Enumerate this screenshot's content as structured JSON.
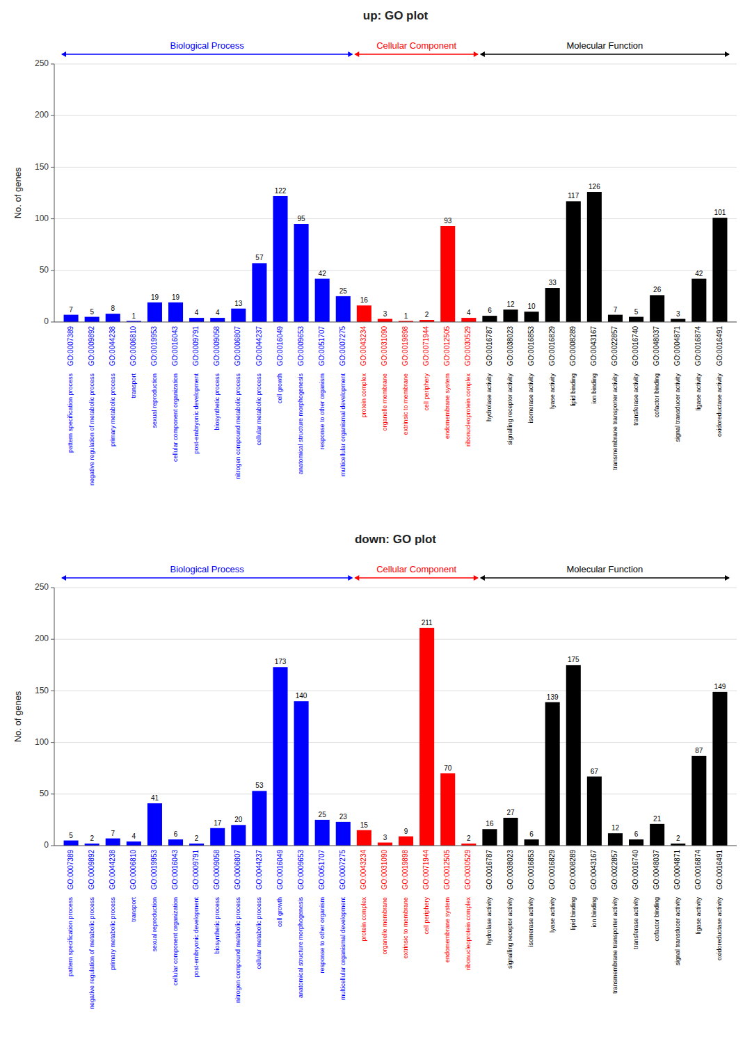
{
  "chart_data": [
    {
      "type": "bar",
      "title": "up: GO plot",
      "ylabel": "No. of genes",
      "categories": [
        "GO:0007389",
        "GO:0009892",
        "GO:0044238",
        "GO:0006810",
        "GO:0019953",
        "GO:0016043",
        "GO:0009791",
        "GO:0009058",
        "GO:0006807",
        "GO:0044237",
        "GO:0016049",
        "GO:0009653",
        "GO:0051707",
        "GO:0007275",
        "GO:0043234",
        "GO:0031090",
        "GO:0019898",
        "GO:0071944",
        "GO:0012505",
        "GO:0030529",
        "GO:0016787",
        "GO:0038023",
        "GO:0016853",
        "GO:0016829",
        "GO:0008289",
        "GO:0043167",
        "GO:0022857",
        "GO:0016740",
        "GO:0048037",
        "GO:0004871",
        "GO:0016874",
        "GO:0016491"
      ],
      "category_labels": [
        "pattern specification process",
        "negative regulation of metabolic process",
        "primary metabolic process",
        "transport",
        "sexual reproduction",
        "cellular component organization",
        "post-embryonic development",
        "biosynthetic process",
        "nitrogen compound metabolic process",
        "cellular metabolic process",
        "cell growth",
        "anatomical structure morphogenesis",
        "response to other organism",
        "multicellular organismal development",
        "protein complex",
        "organelle membrane",
        "extrinsic to membrane",
        "cell periphery",
        "endomembrane system",
        "ribonucleoprotein complex",
        "hydrolase activity",
        "signalling receptor activity",
        "isomerase activity",
        "lyase activity",
        "lipid binding",
        "ion binding",
        "transmembrane transporter activity",
        "transferase activity",
        "cofactor binding",
        "signal transducer activity",
        "ligase activity",
        "oxidoreductase activity"
      ],
      "values": [
        7,
        5,
        8,
        1,
        19,
        19,
        4,
        4,
        13,
        57,
        122,
        95,
        42,
        25,
        16,
        3,
        1,
        2,
        93,
        4,
        6,
        12,
        10,
        33,
        117,
        126,
        7,
        5,
        26,
        3,
        42,
        101
      ],
      "colors": [
        "blue",
        "blue",
        "blue",
        "blue",
        "blue",
        "blue",
        "blue",
        "blue",
        "blue",
        "blue",
        "blue",
        "blue",
        "blue",
        "blue",
        "red",
        "red",
        "red",
        "red",
        "red",
        "red",
        "black",
        "black",
        "black",
        "black",
        "black",
        "black",
        "black",
        "black",
        "black",
        "black",
        "black",
        "black"
      ],
      "groups": [
        {
          "name": "Biological Process",
          "color": "blue",
          "size": 14
        },
        {
          "name": "Cellular Component",
          "color": "red",
          "size": 6
        },
        {
          "name": "Molecular Function",
          "color": "black",
          "size": 12
        }
      ],
      "ylim": [
        0,
        250
      ],
      "yticks": [
        0,
        50,
        100,
        150,
        200,
        250
      ],
      "grid": true,
      "data_labels": true
    },
    {
      "type": "bar",
      "title": "down: GO plot",
      "ylabel": "No. of genes",
      "categories": [
        "GO:0007389",
        "GO:0009892",
        "GO:0044238",
        "GO:0006810",
        "GO:0019953",
        "GO:0016043",
        "GO:0009791",
        "GO:0009058",
        "GO:0006807",
        "GO:0044237",
        "GO:0016049",
        "GO:0009653",
        "GO:0051707",
        "GO:0007275",
        "GO:0043234",
        "GO:0031090",
        "GO:0019898",
        "GO:0071944",
        "GO:0012505",
        "GO:0030529",
        "GO:0016787",
        "GO:0038023",
        "GO:0016853",
        "GO:0016829",
        "GO:0008289",
        "GO:0043167",
        "GO:0022857",
        "GO:0016740",
        "GO:0048037",
        "GO:0004871",
        "GO:0016874",
        "GO:0016491"
      ],
      "category_labels": [
        "pattern specification process",
        "negative regulation of metabolic process",
        "primary metabolic process",
        "transport",
        "sexual reproduction",
        "cellular component organization",
        "post-embryonic development",
        "biosynthetic process",
        "nitrogen compound metabolic process",
        "cellular metabolic process",
        "cell growth",
        "anatomical structure morphogenesis",
        "response to other organism",
        "multicellular organismal development",
        "protein complex",
        "organelle membrane",
        "extrinsic to membrane",
        "cell periphery",
        "endomembrane system",
        "ribonucleoprotein complex",
        "hydrolase activity",
        "signalling receptor activity",
        "isomerase activity",
        "lyase activity",
        "lipid binding",
        "ion binding",
        "transmembrane transporter activity",
        "transferase activity",
        "cofactor binding",
        "signal transducer activity",
        "ligase activity",
        "oxidoreductase activity"
      ],
      "values": [
        5,
        2,
        7,
        4,
        41,
        6,
        2,
        17,
        20,
        53,
        173,
        140,
        25,
        23,
        15,
        3,
        9,
        211,
        70,
        2,
        16,
        27,
        6,
        139,
        175,
        67,
        12,
        6,
        21,
        2,
        87,
        149
      ],
      "colors": [
        "blue",
        "blue",
        "blue",
        "blue",
        "blue",
        "blue",
        "blue",
        "blue",
        "blue",
        "blue",
        "blue",
        "blue",
        "blue",
        "blue",
        "red",
        "red",
        "red",
        "red",
        "red",
        "red",
        "black",
        "black",
        "black",
        "black",
        "black",
        "black",
        "black",
        "black",
        "black",
        "black",
        "black",
        "black"
      ],
      "groups": [
        {
          "name": "Biological Process",
          "color": "blue",
          "size": 14
        },
        {
          "name": "Cellular Component",
          "color": "red",
          "size": 6
        },
        {
          "name": "Molecular Function",
          "color": "black",
          "size": 12
        }
      ],
      "ylim": [
        0,
        250
      ],
      "yticks": [
        0,
        50,
        100,
        150,
        200,
        250
      ],
      "grid": true,
      "data_labels": true
    }
  ]
}
